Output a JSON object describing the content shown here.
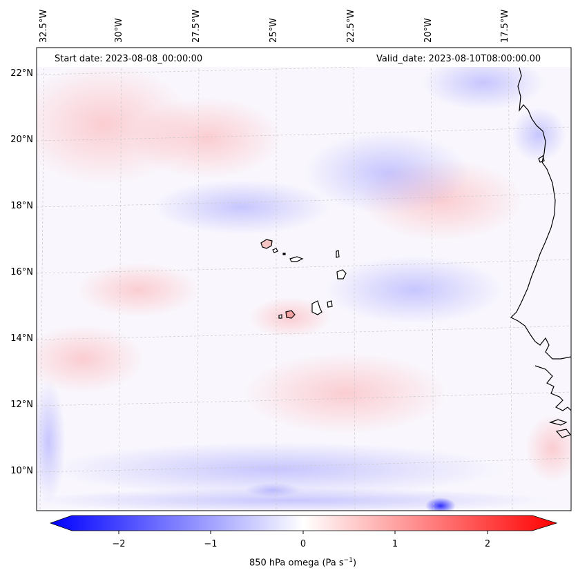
{
  "map": {
    "title_left": "Start date: 2023-08-08_00:00:00",
    "title_right": "Valid_date: 2023-08-10T08:00:00.00",
    "lon_labels": [
      "32.5°W",
      "30°W",
      "27.5°W",
      "25°W",
      "22.5°W",
      "20°W",
      "17.5°W"
    ],
    "lat_labels": [
      "22°N",
      "20°N",
      "18°N",
      "16°N",
      "14°N",
      "12°N",
      "10°N"
    ],
    "field": "850 hPa omega",
    "colors": {
      "neg": "#0000ff",
      "zero": "#ffffff",
      "pos": "#ff0000",
      "coast": "#000000",
      "grid": "#c8c8c8"
    }
  },
  "colorbar": {
    "ticks": [
      "−2",
      "−1",
      "0",
      "1",
      "2"
    ],
    "label_main": "850 hPa omega (Pa s",
    "label_sup": "−1",
    "label_end": ")",
    "range": [
      -2.5,
      2.5
    ]
  }
}
